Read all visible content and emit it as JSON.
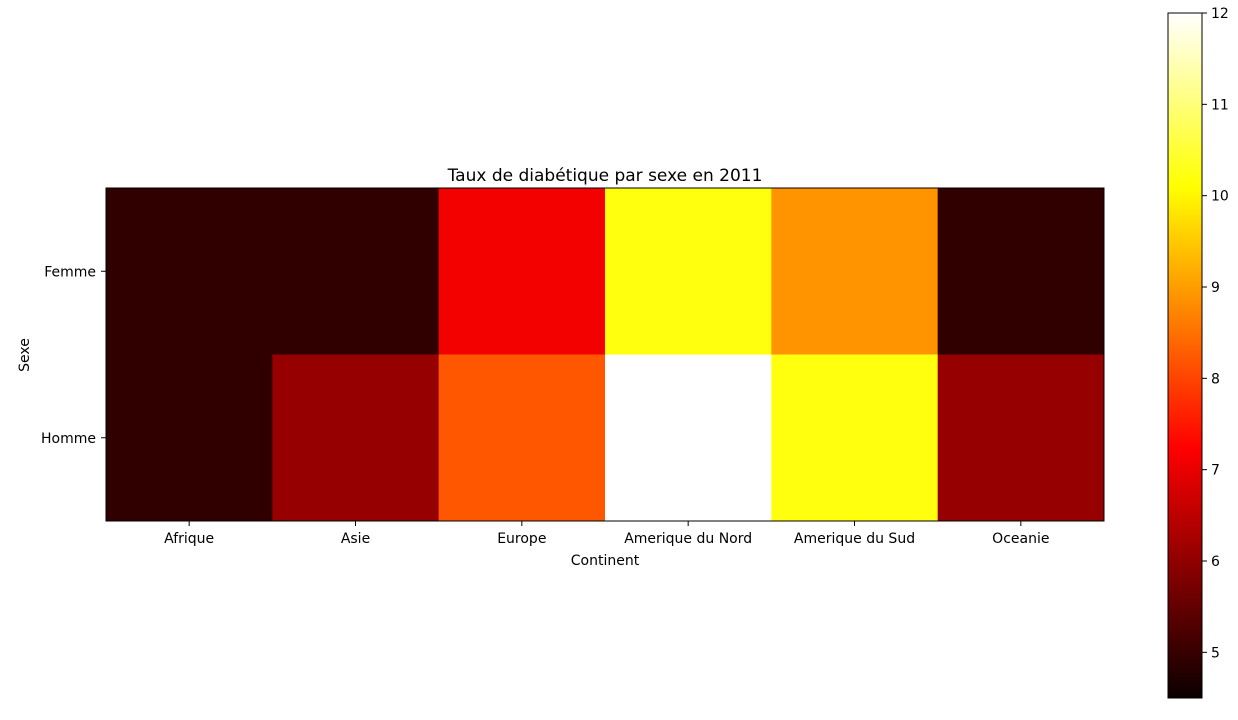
{
  "chart_data": {
    "type": "heatmap",
    "title": "Taux de diabétique par sexe en 2011",
    "xlabel": "Continent",
    "ylabel": "Sexe",
    "x_categories": [
      "Afrique",
      "Asie",
      "Europe",
      "Amerique du Nord",
      "Amerique du Sud",
      "Oceanie"
    ],
    "y_categories": [
      "Femme",
      "Homme"
    ],
    "values": [
      [
        4.9,
        4.9,
        7.0,
        10.2,
        8.9,
        4.9
      ],
      [
        4.9,
        6.0,
        8.2,
        12.0,
        10.2,
        6.0
      ]
    ],
    "colormap": "hot",
    "colorbar": {
      "min": 4.5,
      "max": 12,
      "ticks": [
        5,
        6,
        7,
        8,
        9,
        10,
        11,
        12
      ]
    },
    "grid": false,
    "legend": "colorbar-right"
  }
}
